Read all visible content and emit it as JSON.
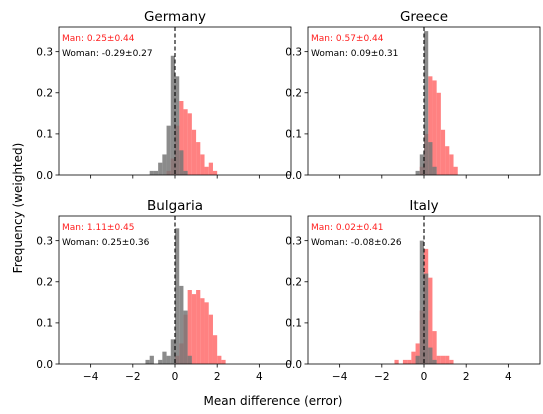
{
  "figure": {
    "ylabel": "Frequency (weighted)",
    "xlabel": "Mean difference (error)"
  },
  "chart_data": [
    {
      "type": "histogram",
      "title": "Germany",
      "annotations": {
        "man": "Man: 0.25±0.44",
        "woman": "Woman: -0.29±0.27"
      },
      "xlim": [
        -5.5,
        5.5
      ],
      "ylim": [
        0,
        0.36
      ],
      "xticks": [
        -4,
        -2,
        0,
        2,
        4
      ],
      "yticks": [
        0.0,
        0.1,
        0.2,
        0.3
      ],
      "ref_line_x": 0,
      "bin_width": 0.2,
      "show_xtick_labels": false,
      "series": [
        {
          "name": "Man",
          "color": "#ff6b6b",
          "opacity": 0.85,
          "bins": [
            [
              -0.4,
              0.01
            ],
            [
              -0.2,
              0.04
            ],
            [
              0.0,
              0.12
            ],
            [
              0.2,
              0.18
            ],
            [
              0.4,
              0.16
            ],
            [
              0.6,
              0.15
            ],
            [
              0.8,
              0.11
            ],
            [
              1.0,
              0.08
            ],
            [
              1.2,
              0.05
            ],
            [
              1.4,
              0.02
            ],
            [
              1.6,
              0.03
            ],
            [
              1.8,
              0.01
            ]
          ]
        },
        {
          "name": "Woman",
          "color": "#777777",
          "opacity": 0.85,
          "bins": [
            [
              -1.2,
              0.01
            ],
            [
              -1.0,
              0.01
            ],
            [
              -0.8,
              0.03
            ],
            [
              -0.6,
              0.05
            ],
            [
              -0.4,
              0.12
            ],
            [
              -0.2,
              0.29
            ],
            [
              0.0,
              0.24
            ],
            [
              0.2,
              0.06
            ],
            [
              0.4,
              0.01
            ]
          ]
        }
      ]
    },
    {
      "type": "histogram",
      "title": "Greece",
      "annotations": {
        "man": "Man: 0.57±0.44",
        "woman": "Woman: 0.09±0.31"
      },
      "xlim": [
        -5.5,
        5.5
      ],
      "ylim": [
        0,
        0.36
      ],
      "xticks": [
        -4,
        -2,
        0,
        2,
        4
      ],
      "yticks": [
        0.0,
        0.1,
        0.2,
        0.3
      ],
      "ref_line_x": 0,
      "bin_width": 0.2,
      "show_xtick_labels": false,
      "series": [
        {
          "name": "Man",
          "color": "#ff6b6b",
          "opacity": 0.85,
          "bins": [
            [
              -0.2,
              0.02
            ],
            [
              0.0,
              0.1
            ],
            [
              0.2,
              0.24
            ],
            [
              0.4,
              0.23
            ],
            [
              0.6,
              0.2
            ],
            [
              0.8,
              0.11
            ],
            [
              1.0,
              0.07
            ],
            [
              1.2,
              0.05
            ],
            [
              1.4,
              0.02
            ]
          ]
        },
        {
          "name": "Woman",
          "color": "#777777",
          "opacity": 0.85,
          "bins": [
            [
              -0.4,
              0.01
            ],
            [
              -0.2,
              0.05
            ],
            [
              0.0,
              0.35
            ],
            [
              0.2,
              0.08
            ],
            [
              0.4,
              0.02
            ]
          ]
        }
      ]
    },
    {
      "type": "histogram",
      "title": "Bulgaria",
      "annotations": {
        "man": "Man: 1.11±0.45",
        "woman": "Woman: 0.25±0.36"
      },
      "xlim": [
        -5.5,
        5.5
      ],
      "ylim": [
        0,
        0.36
      ],
      "xticks": [
        -4,
        -2,
        0,
        2,
        4
      ],
      "yticks": [
        0.0,
        0.1,
        0.2,
        0.3
      ],
      "ref_line_x": 0,
      "bin_width": 0.2,
      "show_xtick_labels": true,
      "series": [
        {
          "name": "Man",
          "color": "#ff6b6b",
          "opacity": 0.85,
          "bins": [
            [
              0.0,
              0.02
            ],
            [
              0.2,
              0.05
            ],
            [
              0.4,
              0.12
            ],
            [
              0.6,
              0.18
            ],
            [
              0.8,
              0.17
            ],
            [
              1.0,
              0.18
            ],
            [
              1.2,
              0.16
            ],
            [
              1.4,
              0.15
            ],
            [
              1.6,
              0.12
            ],
            [
              1.8,
              0.07
            ],
            [
              2.0,
              0.02
            ],
            [
              2.2,
              0.01
            ]
          ]
        },
        {
          "name": "Woman",
          "color": "#777777",
          "opacity": 0.85,
          "bins": [
            [
              -1.4,
              0.01
            ],
            [
              -1.2,
              0.02
            ],
            [
              -0.8,
              0.01
            ],
            [
              -0.6,
              0.03
            ],
            [
              -0.4,
              0.02
            ],
            [
              -0.2,
              0.06
            ],
            [
              0.0,
              0.33
            ],
            [
              0.2,
              0.19
            ],
            [
              0.4,
              0.13
            ],
            [
              0.6,
              0.02
            ]
          ]
        }
      ]
    },
    {
      "type": "histogram",
      "title": "Italy",
      "annotations": {
        "man": "Man: 0.02±0.41",
        "woman": "Woman: -0.08±0.26"
      },
      "xlim": [
        -5.5,
        5.5
      ],
      "ylim": [
        0,
        0.36
      ],
      "xticks": [
        -4,
        -2,
        0,
        2,
        4
      ],
      "yticks": [
        0.0,
        0.1,
        0.2,
        0.3
      ],
      "ref_line_x": 0,
      "bin_width": 0.2,
      "show_xtick_labels": true,
      "series": [
        {
          "name": "Man",
          "color": "#ff6b6b",
          "opacity": 0.85,
          "bins": [
            [
              -1.4,
              0.01
            ],
            [
              -1.0,
              0.01
            ],
            [
              -0.8,
              0.01
            ],
            [
              -0.6,
              0.03
            ],
            [
              -0.4,
              0.05
            ],
            [
              -0.2,
              0.13
            ],
            [
              0.0,
              0.28
            ],
            [
              0.2,
              0.21
            ],
            [
              0.4,
              0.08
            ],
            [
              0.6,
              0.02
            ],
            [
              0.8,
              0.02
            ],
            [
              1.0,
              0.02
            ],
            [
              1.2,
              0.01
            ]
          ]
        },
        {
          "name": "Woman",
          "color": "#777777",
          "opacity": 0.85,
          "bins": [
            [
              -0.4,
              0.02
            ],
            [
              -0.2,
              0.3
            ],
            [
              0.0,
              0.22
            ],
            [
              0.2,
              0.04
            ],
            [
              0.4,
              0.01
            ]
          ]
        }
      ]
    }
  ]
}
